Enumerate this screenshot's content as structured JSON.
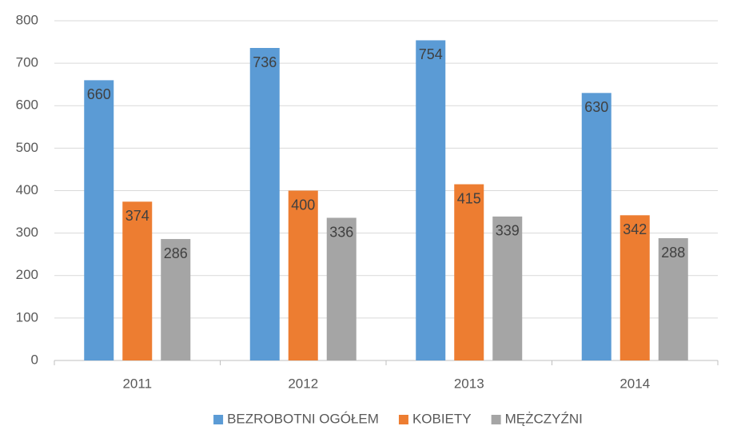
{
  "chart_data": {
    "type": "bar",
    "categories": [
      "2011",
      "2012",
      "2013",
      "2014"
    ],
    "series": [
      {
        "name": "BEZROBOTNI OGÓŁEM",
        "color": "#5b9bd5",
        "values": [
          660,
          736,
          754,
          630
        ]
      },
      {
        "name": "KOBIETY",
        "color": "#ed7d31",
        "values": [
          374,
          400,
          415,
          342
        ]
      },
      {
        "name": "MĘŻCZYŹNI",
        "color": "#a5a5a5",
        "values": [
          286,
          336,
          339,
          288
        ]
      }
    ],
    "ylim": [
      0,
      800
    ],
    "yticks": [
      0,
      100,
      200,
      300,
      400,
      500,
      600,
      700,
      800
    ],
    "grid": true,
    "legend": "bottom"
  }
}
